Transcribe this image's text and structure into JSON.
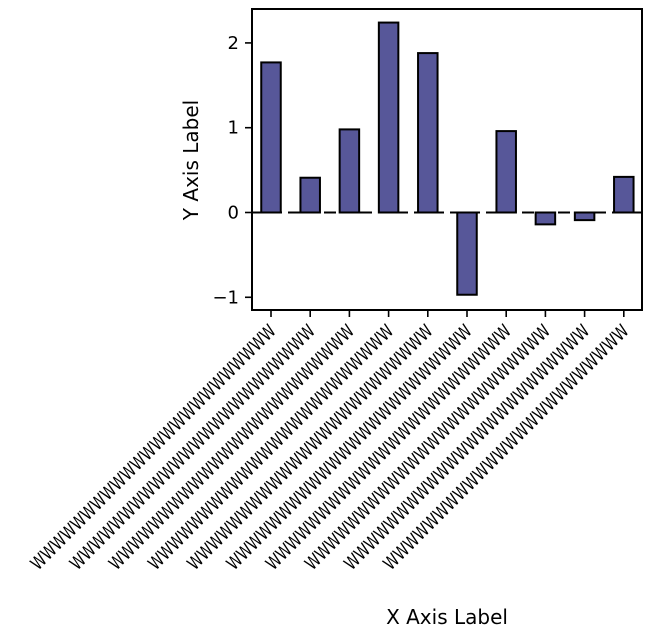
{
  "chart_data": {
    "type": "bar",
    "categories": [
      "WWWWWWWWWWWWWWWWWWWWWWWW",
      "WWWWWWWWWWWWWWWWWWWWWWWW",
      "WWWWWWWWWWWWWWWWWWWWWWWW",
      "WWWWWWWWWWWWWWWWWWWWWWWW",
      "WWWWWWWWWWWWWWWWWWWWWWWW",
      "WWWWWWWWWWWWWWWWWWWWWWWW",
      "WWWWWWWWWWWWWWWWWWWWWWWW",
      "WWWWWWWWWWWWWWWWWWWWWWWW",
      "WWWWWWWWWWWWWWWWWWWWWWWW",
      "WWWWWWWWWWWWWWWWWWWWWWWW"
    ],
    "values": [
      1.77,
      0.41,
      0.98,
      2.24,
      1.88,
      -0.97,
      0.96,
      -0.14,
      -0.09,
      0.42
    ],
    "title": "",
    "xlabel": "X Axis Label",
    "ylabel": "Y Axis Label",
    "ylim": [
      -1.15,
      2.4
    ],
    "yticks": [
      -1,
      0,
      1,
      2
    ],
    "ytick_labels": [
      "−1",
      "0",
      "1",
      "2"
    ],
    "zero_line": "dashed",
    "grid": false,
    "bar_color": "#575799",
    "edge_color": "#000000"
  }
}
